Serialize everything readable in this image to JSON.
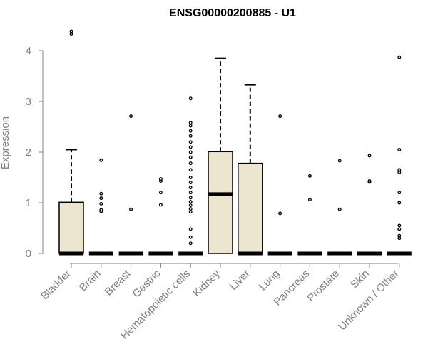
{
  "chart_data": {
    "type": "boxplot",
    "title": "ENSG00000200885 - U1",
    "xlabel": "",
    "ylabel": "Expression",
    "ylim": [
      0,
      4.4
    ],
    "yticks": [
      0,
      1,
      2,
      3,
      4
    ],
    "grid": false,
    "legend": "none",
    "box_fill": "#ede6cf",
    "axis_color": "#808080",
    "categories": [
      "Bladder",
      "Brain",
      "Breast",
      "Gastric",
      "Hematopoietic cells",
      "Kidney",
      "Liver",
      "Lung",
      "Pancreas",
      "Prostate",
      "Skin",
      "Unknown / Other"
    ],
    "boxes": [
      {
        "q1": 0,
        "median": 0,
        "q3": 1.01,
        "whisker_low": 0,
        "whisker_high": 2.05,
        "outliers": [
          4.33,
          4.38
        ]
      },
      {
        "q1": 0,
        "median": 0,
        "q3": 0,
        "whisker_low": 0,
        "whisker_high": 0,
        "outliers": [
          0.83,
          0.86,
          0.98,
          1.09,
          1.18,
          1.84
        ]
      },
      {
        "q1": 0,
        "median": 0,
        "q3": 0,
        "whisker_low": 0,
        "whisker_high": 0,
        "outliers": [
          0.87,
          2.71
        ]
      },
      {
        "q1": 0,
        "median": 0,
        "q3": 0,
        "whisker_low": 0,
        "whisker_high": 0,
        "outliers": [
          0.96,
          1.2,
          1.43,
          1.47
        ]
      },
      {
        "q1": 0,
        "median": 0,
        "q3": 0,
        "whisker_low": 0,
        "whisker_high": 0,
        "outliers": [
          0.2,
          0.32,
          0.48,
          0.82,
          0.88,
          0.95,
          1.02,
          1.1,
          1.2,
          1.3,
          1.4,
          1.5,
          1.65,
          1.78,
          1.9,
          2.0,
          2.1,
          2.2,
          2.32,
          2.42,
          2.52,
          2.58,
          3.06
        ]
      },
      {
        "q1": 0,
        "median": 1.17,
        "q3": 2.01,
        "whisker_low": 0,
        "whisker_high": 3.85,
        "outliers": []
      },
      {
        "q1": 0,
        "median": 0,
        "q3": 1.78,
        "whisker_low": 0,
        "whisker_high": 3.33,
        "outliers": []
      },
      {
        "q1": 0,
        "median": 0,
        "q3": 0,
        "whisker_low": 0,
        "whisker_high": 0,
        "outliers": [
          0.79,
          2.71
        ]
      },
      {
        "q1": 0,
        "median": 0,
        "q3": 0,
        "whisker_low": 0,
        "whisker_high": 0,
        "outliers": [
          1.06,
          1.53
        ]
      },
      {
        "q1": 0,
        "median": 0,
        "q3": 0,
        "whisker_low": 0,
        "whisker_high": 0,
        "outliers": [
          0.87,
          1.83
        ]
      },
      {
        "q1": 0,
        "median": 0,
        "q3": 0,
        "whisker_low": 0,
        "whisker_high": 0,
        "outliers": [
          1.41,
          1.43,
          1.93
        ]
      },
      {
        "q1": 0,
        "median": 0,
        "q3": 0,
        "whisker_low": 0,
        "whisker_high": 0,
        "outliers": [
          0.3,
          0.35,
          0.48,
          0.55,
          1.0,
          1.2,
          1.6,
          1.65,
          2.05,
          3.87
        ]
      }
    ]
  }
}
